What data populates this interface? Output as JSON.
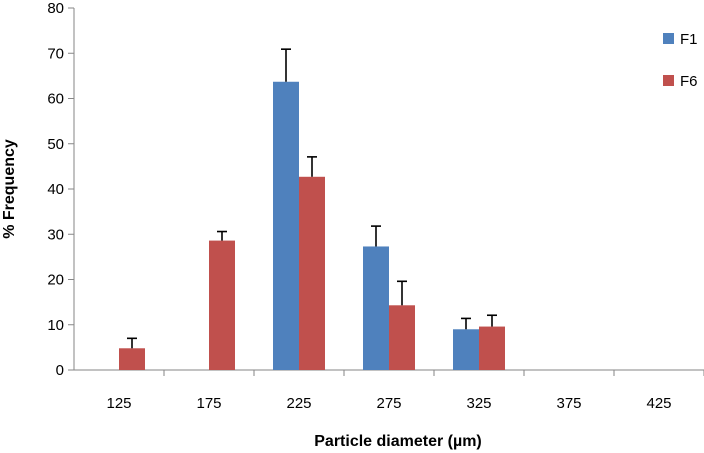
{
  "chart_data": {
    "type": "bar",
    "categories": [
      "125",
      "175",
      "225",
      "275",
      "325",
      "375",
      "425"
    ],
    "series": [
      {
        "name": "F1",
        "color": "#4f81bd",
        "values": [
          0,
          0,
          63.7,
          27.3,
          9.0,
          0,
          0
        ],
        "errors": [
          0,
          0,
          7.2,
          4.5,
          2.4,
          0,
          0
        ]
      },
      {
        "name": "F6",
        "color": "#c0504d",
        "values": [
          4.8,
          28.6,
          42.7,
          14.3,
          9.6,
          0,
          0
        ],
        "errors": [
          2.2,
          2.0,
          4.4,
          5.3,
          2.5,
          0,
          0
        ]
      }
    ],
    "ylim": [
      0,
      80
    ],
    "yticks": [
      "0",
      "10",
      "20",
      "30",
      "40",
      "50",
      "60",
      "70",
      "80"
    ],
    "xlabel": "Particle diameter (µm)",
    "ylabel": "% Frequency",
    "legend_position": "right",
    "grid": false
  }
}
